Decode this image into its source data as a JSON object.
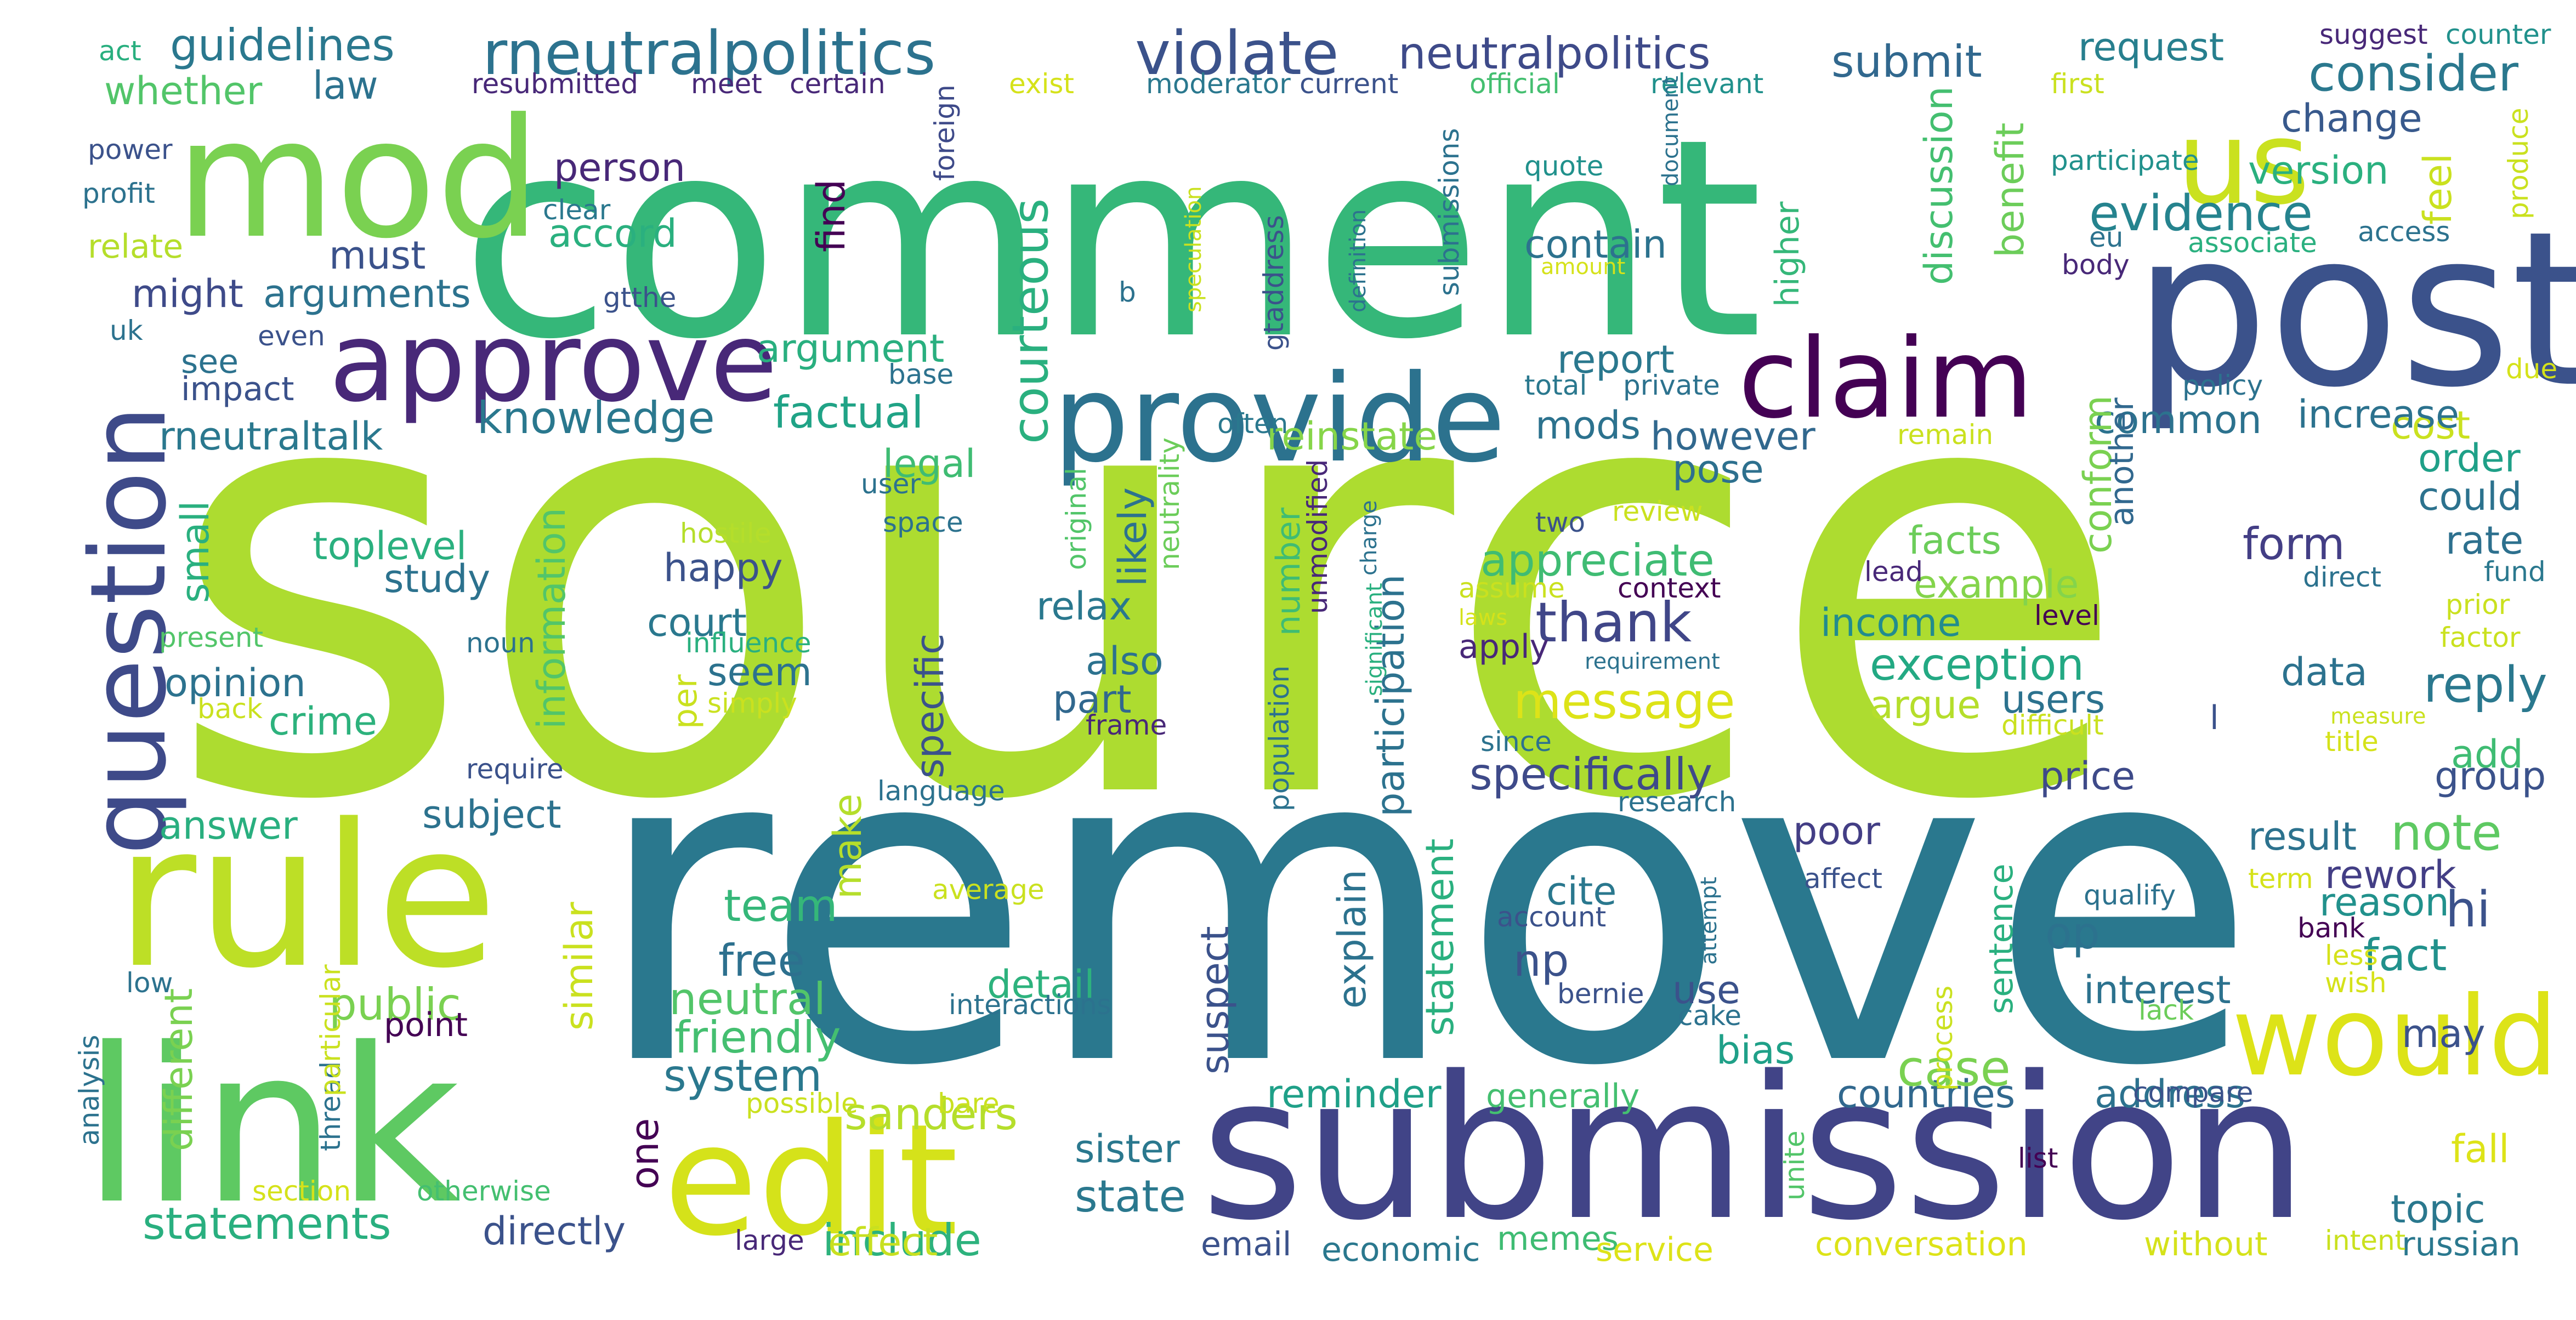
{
  "words": [
    {
      "t": "source",
      "c": "#addc30"
    },
    {
      "t": "remove",
      "c": "#2a788e"
    },
    {
      "t": "comment",
      "c": "#35b779"
    },
    {
      "t": "submission",
      "c": "#414487"
    },
    {
      "t": "link",
      "c": "#5ec962"
    },
    {
      "t": "post",
      "c": "#3b528b"
    },
    {
      "t": "rule",
      "c": "#bddf26"
    },
    {
      "t": "edit",
      "c": "#d5e21a"
    },
    {
      "t": "mod",
      "c": "#7ad151"
    },
    {
      "t": "question",
      "c": "#3e4a89"
    },
    {
      "t": "approve",
      "c": "#482878"
    },
    {
      "t": "provide",
      "c": "#2c728e"
    },
    {
      "t": "claim",
      "c": "#440154"
    },
    {
      "t": "would",
      "c": "#dde318"
    },
    {
      "t": "us",
      "c": "#cae11f"
    },
    {
      "t": "rneutralpolitics",
      "c": "#2c728e"
    },
    {
      "t": "violate",
      "c": "#3b528b"
    },
    {
      "t": "neutralpolitics",
      "c": "#3e4a89"
    },
    {
      "t": "submit",
      "c": "#31688e"
    },
    {
      "t": "request",
      "c": "#277f8e"
    },
    {
      "t": "consider",
      "c": "#2a788e"
    },
    {
      "t": "change",
      "c": "#38598c"
    },
    {
      "t": "feel",
      "c": "#cae11f"
    },
    {
      "t": "version",
      "c": "#2ab07f"
    },
    {
      "t": "evidence",
      "c": "#25838e"
    },
    {
      "t": "thank",
      "c": "#404688"
    },
    {
      "t": "message",
      "c": "#dde318"
    },
    {
      "t": "specifically",
      "c": "#3e4a89"
    },
    {
      "t": "appreciate",
      "c": "#3fbc73"
    },
    {
      "t": "statements",
      "c": "#29af7f"
    },
    {
      "t": "directly",
      "c": "#3b528b"
    },
    {
      "t": "team",
      "c": "#35b779"
    },
    {
      "t": "free",
      "c": "#2d708e"
    },
    {
      "t": "public",
      "c": "#7ad151"
    },
    {
      "t": "friendly",
      "c": "#44bf70"
    },
    {
      "t": "neutral",
      "c": "#52c569"
    },
    {
      "t": "system",
      "c": "#2a788e"
    },
    {
      "t": "reminder",
      "c": "#1fa088"
    },
    {
      "t": "sister",
      "c": "#2a788e"
    },
    {
      "t": "state",
      "c": "#2a788e"
    },
    {
      "t": "include",
      "c": "#2db27d"
    },
    {
      "t": "effect",
      "c": "#c8e020"
    },
    {
      "t": "sanders",
      "c": "#b5de2b"
    },
    {
      "t": "detail",
      "c": "#2db27d"
    },
    {
      "t": "countries",
      "c": "#31688e"
    },
    {
      "t": "address",
      "c": "#2c728e"
    },
    {
      "t": "interest",
      "c": "#2c728e"
    },
    {
      "t": "fact",
      "c": "#21918c"
    },
    {
      "t": "hi",
      "c": "#3b528b"
    },
    {
      "t": "note",
      "c": "#5ec962"
    },
    {
      "t": "result",
      "c": "#2c728e"
    },
    {
      "t": "rework",
      "c": "#433e85"
    },
    {
      "t": "reason",
      "c": "#21918c"
    },
    {
      "t": "op",
      "c": "#2c728e"
    },
    {
      "t": "np",
      "c": "#3b528b"
    },
    {
      "t": "cite",
      "c": "#2a788e"
    },
    {
      "t": "case",
      "c": "#7ad151"
    },
    {
      "t": "bias",
      "c": "#1fa088"
    },
    {
      "t": "use",
      "c": "#3b528b"
    },
    {
      "t": "poor",
      "c": "#433e85"
    },
    {
      "t": "knowledge",
      "c": "#2a788e"
    },
    {
      "t": "factual",
      "c": "#20a386"
    },
    {
      "t": "argument",
      "c": "#29af7f"
    },
    {
      "t": "courteous",
      "c": "#2ab07f"
    },
    {
      "t": "reinstate",
      "c": "#86d549"
    },
    {
      "t": "mods",
      "c": "#2c728e"
    },
    {
      "t": "report",
      "c": "#2a788e"
    },
    {
      "t": "contain",
      "c": "#2c728e"
    },
    {
      "t": "however",
      "c": "#31688e"
    },
    {
      "t": "pose",
      "c": "#2d708e"
    },
    {
      "t": "facts",
      "c": "#6ccd5a"
    },
    {
      "t": "example",
      "c": "#84d44b"
    },
    {
      "t": "income",
      "c": "#228c8d"
    },
    {
      "t": "exception",
      "c": "#23a983"
    },
    {
      "t": "argue",
      "c": "#b5de2b"
    },
    {
      "t": "users",
      "c": "#2c728e"
    },
    {
      "t": "price",
      "c": "#3e4a89"
    },
    {
      "t": "data",
      "c": "#2c728e"
    },
    {
      "t": "reply",
      "c": "#2a788e"
    },
    {
      "t": "add",
      "c": "#3fbc73"
    },
    {
      "t": "group",
      "c": "#3b528b"
    },
    {
      "t": "form",
      "c": "#433e85"
    },
    {
      "t": "rate",
      "c": "#2d708e"
    },
    {
      "t": "could",
      "c": "#2c728e"
    },
    {
      "t": "order",
      "c": "#1fa088"
    },
    {
      "t": "cost",
      "c": "#cae11f"
    },
    {
      "t": "common",
      "c": "#2c728e"
    },
    {
      "t": "increase",
      "c": "#2c728e"
    },
    {
      "t": "may",
      "c": "#3b528b"
    },
    {
      "t": "fall",
      "c": "#dde318"
    },
    {
      "t": "topic",
      "c": "#2a788e"
    },
    {
      "t": "russian",
      "c": "#2a788e"
    },
    {
      "t": "without",
      "c": "#d5e21a"
    },
    {
      "t": "conversation",
      "c": "#dde318"
    },
    {
      "t": "memes",
      "c": "#3fbc73"
    },
    {
      "t": "service",
      "c": "#dde318"
    },
    {
      "t": "economic",
      "c": "#2a788e"
    },
    {
      "t": "email",
      "c": "#3b528b"
    },
    {
      "t": "large",
      "c": "#482878"
    },
    {
      "t": "generally",
      "c": "#44bf70"
    },
    {
      "t": "guidelines",
      "c": "#2a788e"
    },
    {
      "t": "law",
      "c": "#2c728e"
    },
    {
      "t": "whether",
      "c": "#52c569"
    },
    {
      "t": "relate",
      "c": "#b5de2b"
    },
    {
      "t": "must",
      "c": "#3b528b"
    },
    {
      "t": "might",
      "c": "#3e4a89"
    },
    {
      "t": "arguments",
      "c": "#2c728e"
    },
    {
      "t": "see",
      "c": "#2c728e"
    },
    {
      "t": "impact",
      "c": "#3b528b"
    },
    {
      "t": "rneutraltalk",
      "c": "#2a788e"
    },
    {
      "t": "toplevel",
      "c": "#2ab07f"
    },
    {
      "t": "study",
      "c": "#2c728e"
    },
    {
      "t": "opinion",
      "c": "#2c728e"
    },
    {
      "t": "crime",
      "c": "#2db27d"
    },
    {
      "t": "answer",
      "c": "#29af7f"
    },
    {
      "t": "subject",
      "c": "#2c728e"
    },
    {
      "t": "require",
      "c": "#3b528b"
    },
    {
      "t": "different",
      "c": "#7ad151"
    },
    {
      "t": "small",
      "c": "#2ab07f"
    },
    {
      "t": "similar",
      "c": "#cae11f"
    },
    {
      "t": "make",
      "c": "#b5de2b"
    },
    {
      "t": "one",
      "c": "#440154"
    },
    {
      "t": "person",
      "c": "#482878"
    },
    {
      "t": "accord",
      "c": "#2ab07f"
    },
    {
      "t": "find",
      "c": "#440154"
    },
    {
      "t": "information",
      "c": "#52c569"
    },
    {
      "t": "happy",
      "c": "#3b528b"
    },
    {
      "t": "court",
      "c": "#2a788e"
    },
    {
      "t": "seem",
      "c": "#2c728e"
    },
    {
      "t": "per",
      "c": "#cae11f"
    },
    {
      "t": "specific",
      "c": "#3b528b"
    },
    {
      "t": "relax",
      "c": "#2a788e"
    },
    {
      "t": "also",
      "c": "#2c728e"
    },
    {
      "t": "part",
      "c": "#31688e"
    },
    {
      "t": "likely",
      "c": "#2c728e"
    },
    {
      "t": "legal",
      "c": "#3fbc73"
    },
    {
      "t": "number",
      "c": "#3fbc73"
    },
    {
      "t": "participation",
      "c": "#2c728e"
    },
    {
      "t": "explain",
      "c": "#2c728e"
    },
    {
      "t": "suspect",
      "c": "#3b528b"
    },
    {
      "t": "statement",
      "c": "#2ab07f"
    },
    {
      "t": "higher",
      "c": "#35b779"
    },
    {
      "t": "discussion",
      "c": "#44bf70"
    },
    {
      "t": "benefit",
      "c": "#6ccd5a"
    },
    {
      "t": "conform",
      "c": "#7ad151"
    },
    {
      "t": "another",
      "c": "#31688e"
    },
    {
      "t": "sentence",
      "c": "#2ab07f"
    },
    {
      "t": "apply",
      "c": "#482878"
    },
    {
      "t": "since",
      "c": "#2c728e"
    },
    {
      "t": "two",
      "c": "#3b528b"
    },
    {
      "t": "assume",
      "c": "#cae11f"
    },
    {
      "t": "context",
      "c": "#440154"
    },
    {
      "t": "level",
      "c": "#440154"
    },
    {
      "t": "review",
      "c": "#cae11f"
    },
    {
      "t": "requirement",
      "c": "#2c728e"
    },
    {
      "t": "research",
      "c": "#2c728e"
    },
    {
      "t": "unite",
      "c": "#52c569"
    },
    {
      "t": "submissions",
      "c": "#2c728e"
    },
    {
      "t": "moderator",
      "c": "#2a788e"
    },
    {
      "t": "current",
      "c": "#3b528b"
    },
    {
      "t": "official",
      "c": "#44bf70"
    },
    {
      "t": "relevant",
      "c": "#21918c"
    },
    {
      "t": "exist",
      "c": "#d5e21a"
    },
    {
      "t": "certain",
      "c": "#482878"
    },
    {
      "t": "meet",
      "c": "#482878"
    },
    {
      "t": "resubmitted",
      "c": "#482878"
    },
    {
      "t": "suggest",
      "c": "#482878"
    },
    {
      "t": "counter",
      "c": "#21918c"
    },
    {
      "t": "first",
      "c": "#cae11f"
    },
    {
      "t": "participate",
      "c": "#21918c"
    },
    {
      "t": "produce",
      "c": "#cae11f"
    },
    {
      "t": "eu",
      "c": "#2c728e"
    },
    {
      "t": "associate",
      "c": "#2ab07f"
    },
    {
      "t": "access",
      "c": "#2c728e"
    },
    {
      "t": "body",
      "c": "#482878"
    },
    {
      "t": "quote",
      "c": "#21918c"
    },
    {
      "t": "document",
      "c": "#2c728e"
    },
    {
      "t": "amount",
      "c": "#d5e21a"
    },
    {
      "t": "definition",
      "c": "#2c728e"
    },
    {
      "t": "speculation",
      "c": "#cae11f"
    },
    {
      "t": "gtaddress",
      "c": "#3b528b"
    },
    {
      "t": "b",
      "c": "#2c728e"
    },
    {
      "t": "foreign",
      "c": "#3e4a89"
    },
    {
      "t": "clear",
      "c": "#2a788e"
    },
    {
      "t": "gtthe",
      "c": "#3b528b"
    },
    {
      "t": "base",
      "c": "#2c728e"
    },
    {
      "t": "user",
      "c": "#2c728e"
    },
    {
      "t": "space",
      "c": "#2c728e"
    },
    {
      "t": "original",
      "c": "#52c569"
    },
    {
      "t": "neutrality",
      "c": "#6ccd5a"
    },
    {
      "t": "often",
      "c": "#2a788e"
    },
    {
      "t": "unmodified",
      "c": "#482878"
    },
    {
      "t": "charge",
      "c": "#2c728e"
    },
    {
      "t": "significant",
      "c": "#2ab07f"
    },
    {
      "t": "population",
      "c": "#2c728e"
    },
    {
      "t": "frame",
      "c": "#482878"
    },
    {
      "t": "language",
      "c": "#2c728e"
    },
    {
      "t": "total",
      "c": "#2a788e"
    },
    {
      "t": "private",
      "c": "#2c728e"
    },
    {
      "t": "remain",
      "c": "#cae11f"
    },
    {
      "t": "lead",
      "c": "#482878"
    },
    {
      "t": "laws",
      "c": "#d5e21a"
    },
    {
      "t": "hostile",
      "c": "#b5de2b"
    },
    {
      "t": "influence",
      "c": "#2ab07f"
    },
    {
      "t": "simply",
      "c": "#cae11f"
    },
    {
      "t": "noun",
      "c": "#2c728e"
    },
    {
      "t": "present",
      "c": "#52c569"
    },
    {
      "t": "back",
      "c": "#cae11f"
    },
    {
      "t": "act",
      "c": "#29af7f"
    },
    {
      "t": "power",
      "c": "#3b528b"
    },
    {
      "t": "profit",
      "c": "#2c728e"
    },
    {
      "t": "uk",
      "c": "#2c728e"
    },
    {
      "t": "even",
      "c": "#3b528b"
    },
    {
      "t": "low",
      "c": "#2c728e"
    },
    {
      "t": "analysis",
      "c": "#2c728e"
    },
    {
      "t": "thread",
      "c": "#2c728e"
    },
    {
      "t": "particular",
      "c": "#cae11f"
    },
    {
      "t": "point",
      "c": "#440154"
    },
    {
      "t": "section",
      "c": "#d5e21a"
    },
    {
      "t": "otherwise",
      "c": "#44bf70"
    },
    {
      "t": "possible",
      "c": "#cae11f"
    },
    {
      "t": "bare",
      "c": "#cae11f"
    },
    {
      "t": "average",
      "c": "#cae11f"
    },
    {
      "t": "interactions",
      "c": "#2c728e"
    },
    {
      "t": "account",
      "c": "#3b528b"
    },
    {
      "t": "bernie",
      "c": "#3b528b"
    },
    {
      "t": "cake",
      "c": "#2c728e"
    },
    {
      "t": "attempt",
      "c": "#2c728e"
    },
    {
      "t": "affect",
      "c": "#3b528b"
    },
    {
      "t": "process",
      "c": "#cae11f"
    },
    {
      "t": "list",
      "c": "#440154"
    },
    {
      "t": "lack",
      "c": "#6ccd5a"
    },
    {
      "t": "qualify",
      "c": "#2c728e"
    },
    {
      "t": "bank",
      "c": "#440154"
    },
    {
      "t": "less",
      "c": "#d5e21a"
    },
    {
      "t": "wish",
      "c": "#d5e21a"
    },
    {
      "t": "term",
      "c": "#d5e21a"
    },
    {
      "t": "compare",
      "c": "#3b528b"
    },
    {
      "t": "intent",
      "c": "#cae11f"
    },
    {
      "t": "direct",
      "c": "#2c728e"
    },
    {
      "t": "prior",
      "c": "#cae11f"
    },
    {
      "t": "fund",
      "c": "#2a788e"
    },
    {
      "t": "factor",
      "c": "#cae11f"
    },
    {
      "t": "measure",
      "c": "#cae11f"
    },
    {
      "t": "title",
      "c": "#d5e21a"
    },
    {
      "t": "difficult",
      "c": "#cae11f"
    },
    {
      "t": "policy",
      "c": "#2c728e"
    },
    {
      "t": "due",
      "c": "#d5e21a"
    },
    {
      "t": "l",
      "c": "#3b528b"
    }
  ]
}
